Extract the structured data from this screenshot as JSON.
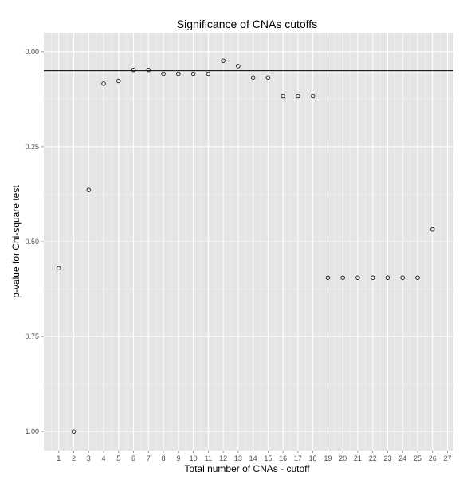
{
  "chart_data": {
    "type": "scatter",
    "title": "Significance of CNAs cutoffs",
    "xlabel": "Total number of CNAs - cutoff",
    "ylabel": "p-value for Chi-square test",
    "x": [
      1,
      2,
      3,
      4,
      5,
      6,
      7,
      8,
      9,
      10,
      11,
      12,
      13,
      14,
      15,
      16,
      17,
      18,
      19,
      20,
      21,
      22,
      23,
      24,
      25,
      26
    ],
    "y": [
      0.57,
      1.0,
      0.364,
      0.084,
      0.077,
      0.048,
      0.048,
      0.058,
      0.058,
      0.058,
      0.058,
      0.024,
      0.038,
      0.068,
      0.068,
      0.117,
      0.117,
      0.117,
      0.595,
      0.595,
      0.595,
      0.595,
      0.595,
      0.595,
      0.595,
      0.468
    ],
    "x_ticks": [
      "1",
      "2",
      "3",
      "4",
      "5",
      "6",
      "7",
      "8",
      "9",
      "10",
      "11",
      "12",
      "13",
      "14",
      "15",
      "16",
      "17",
      "18",
      "19",
      "20",
      "21",
      "22",
      "23",
      "24",
      "25",
      "26",
      "27"
    ],
    "y_ticks": [
      "0.00",
      "0.25",
      "0.50",
      "0.75",
      "1.00"
    ],
    "y_tick_values": [
      0,
      0.25,
      0.5,
      0.75,
      1.0
    ],
    "xlim": [
      0,
      27.4
    ],
    "ylim": [
      -0.05,
      1.05
    ],
    "y_reversed": true,
    "reference_line": 0.05,
    "grid": true,
    "colors": {
      "panel": "#e5e5e5",
      "grid": "#ffffff",
      "point": "#000000",
      "hline": "#000000"
    }
  }
}
